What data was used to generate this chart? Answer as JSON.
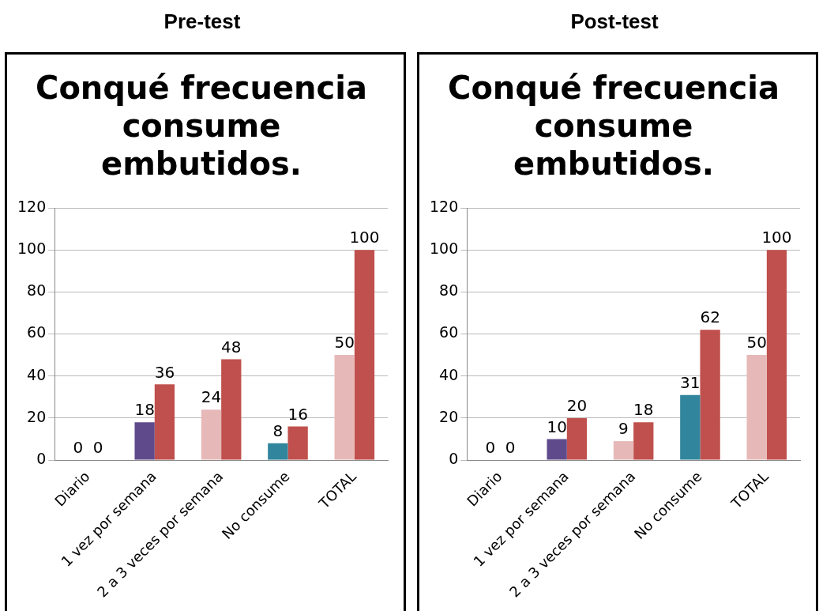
{
  "chart_data": [
    {
      "type": "bar",
      "title": "Conqué frecuencia consume embutidos.",
      "annotations": [
        "Pre-test"
      ],
      "categories": [
        "Diario",
        "1 vez por semana",
        "2 a 3 veces por semana",
        "No consume",
        "TOTAL"
      ],
      "series": [
        {
          "colors": [
            "#5f4b8b",
            "#5f4b8b",
            "#e6b9b8",
            "#31859c",
            "#e6b9b8"
          ],
          "values": [
            0,
            18,
            24,
            8,
            50
          ]
        },
        {
          "color": "#c0504d",
          "values": [
            0,
            36,
            48,
            16,
            100
          ]
        }
      ],
      "ylim": [
        0,
        120
      ],
      "yticks": [
        0,
        20,
        40,
        60,
        80,
        100,
        120
      ],
      "grid": "y",
      "data_labels": true,
      "legend": false
    },
    {
      "type": "bar",
      "title": "Conqué frecuencia consume embutidos.",
      "annotations": [
        "Post-test"
      ],
      "categories": [
        "Diario",
        "1 vez por semana",
        "2 a 3 veces por semana",
        "No consume",
        "TOTAL"
      ],
      "series": [
        {
          "colors": [
            "#5f4b8b",
            "#5f4b8b",
            "#e6b9b8",
            "#31859c",
            "#e6b9b8"
          ],
          "values": [
            0,
            10,
            9,
            31,
            50
          ]
        },
        {
          "color": "#c0504d",
          "values": [
            0,
            20,
            18,
            62,
            100
          ]
        }
      ],
      "ylim": [
        0,
        120
      ],
      "yticks": [
        0,
        20,
        40,
        60,
        80,
        100,
        120
      ],
      "grid": "y",
      "data_labels": true,
      "legend": false
    }
  ]
}
